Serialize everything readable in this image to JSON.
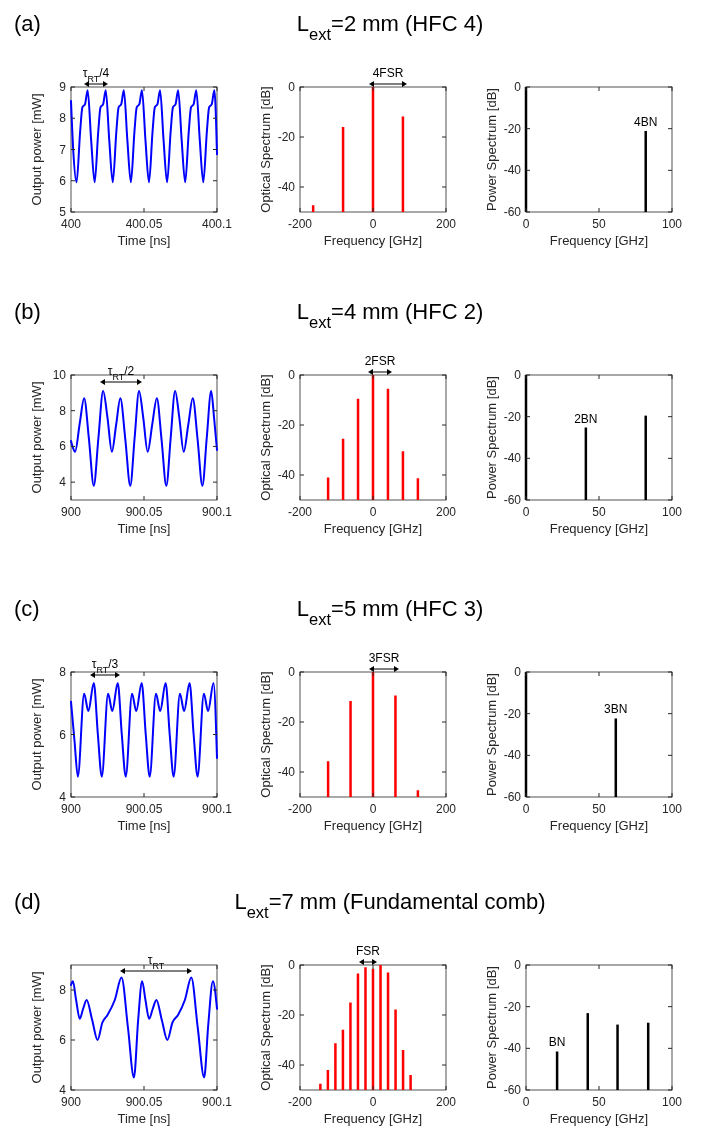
{
  "chart_data": [
    {
      "type": "line",
      "annotations": [
        "(a)",
        "τ$_{RT}$/4"
      ],
      "xlabel": "Time [ns]",
      "ylabel": "Output power [mW]",
      "xlim": [
        400,
        400.1
      ],
      "xticks": [
        400,
        400.05,
        400.1
      ],
      "ylim": [
        5,
        9
      ],
      "yticks": [
        5,
        6,
        7,
        8,
        9
      ],
      "x": [
        400,
        400.0015,
        400.0038,
        400.0063,
        400.0078,
        400.0096,
        400.0114,
        400.0138,
        400.0162,
        400.0187,
        400.0202,
        400.022,
        400.0238,
        400.0262,
        400.0286,
        400.0311,
        400.0326,
        400.0344,
        400.0362,
        400.0386,
        400.041,
        400.0435,
        400.045,
        400.0468,
        400.0486,
        400.051,
        400.0534,
        400.0559,
        400.0574,
        400.0592,
        400.061,
        400.0634,
        400.0658,
        400.0683,
        400.0698,
        400.0716,
        400.0734,
        400.0758,
        400.0782,
        400.0807,
        400.0822,
        400.084,
        400.0858,
        400.0882,
        400.0906,
        400.0931,
        400.0946,
        400.0964,
        400.0982,
        400.1
      ],
      "series": [
        {
          "color": "#0000ff",
          "values": [
            8.55,
            7.0,
            5.95,
            7.6,
            8.35,
            8.45,
            8.9,
            7.3,
            5.95,
            7.6,
            8.35,
            8.45,
            8.9,
            7.3,
            5.95,
            7.6,
            8.35,
            8.45,
            8.9,
            7.3,
            5.95,
            7.6,
            8.35,
            8.45,
            8.9,
            7.3,
            5.95,
            7.6,
            8.35,
            8.45,
            8.9,
            7.3,
            5.95,
            7.6,
            8.35,
            8.45,
            8.9,
            7.3,
            5.95,
            7.6,
            8.35,
            8.45,
            8.9,
            7.3,
            5.95,
            7.6,
            8.35,
            8.45,
            8.9,
            6.85
          ]
        }
      ]
    },
    {
      "type": "bar",
      "title": "L$_{ext}$=2 mm (HFC 4)",
      "annotations": [
        "4FSR"
      ],
      "xlabel": "Frequency [GHz]",
      "ylabel": "Optical Spectrum [dB]",
      "xlim": [
        -200,
        200
      ],
      "xticks": [
        -200,
        0,
        200
      ],
      "ylim": [
        -50,
        0
      ],
      "yticks": [
        -40,
        -20,
        0
      ],
      "color": "#ff0000",
      "x": [
        -164,
        -82,
        0,
        82
      ],
      "base": [
        -50,
        -50,
        -50,
        -50
      ],
      "values": [
        2.7,
        34,
        50,
        38.2
      ]
    },
    {
      "type": "bar",
      "annotations": [
        {
          "text": "4BN",
          "x": 82,
          "y": -21.1
        }
      ],
      "xlabel": "Frequency [GHz]",
      "ylabel": "Power Spectrum [dB]",
      "xlim": [
        0,
        100
      ],
      "xticks": [
        0,
        50,
        100
      ],
      "ylim": [
        -60,
        0
      ],
      "yticks": [
        -60,
        -40,
        -20,
        0
      ],
      "color": "#000000",
      "x": [
        0,
        82
      ],
      "base": [
        -60,
        -60
      ],
      "values": [
        60,
        38.9
      ]
    },
    {
      "type": "line",
      "annotations": [
        "(b)",
        "τ$_{RT}$/2"
      ],
      "xlabel": "Time [ns]",
      "ylabel": "Output power [mW]",
      "xlim": [
        900,
        900.1
      ],
      "xticks": [
        900,
        900.05,
        900.1
      ],
      "ylim": [
        3,
        10
      ],
      "yticks": [
        4,
        6,
        8,
        10
      ],
      "x": [
        900,
        900.0014,
        900.0028,
        900.006,
        900.009,
        900.0123,
        900.0156,
        900.0188,
        900.022,
        900.025,
        900.028,
        900.0309,
        900.0338,
        900.0372,
        900.0406,
        900.0436,
        900.0466,
        900.0495,
        900.0525,
        900.0556,
        900.0588,
        900.062,
        900.0653,
        900.0683,
        900.0713,
        900.0742,
        900.0772,
        900.0803,
        900.0834,
        900.0867,
        900.09,
        900.093,
        900.096,
        900.098,
        900.1
      ],
      "series": [
        {
          "color": "#0000ff",
          "values": [
            6.3,
            5.9,
            5.7,
            7.3,
            8.7,
            6.4,
            3.8,
            6.5,
            9.1,
            7.6,
            5.7,
            7.2,
            8.7,
            6.4,
            3.8,
            6.5,
            9.1,
            7.6,
            5.7,
            7.2,
            8.7,
            6.4,
            3.8,
            6.5,
            9.1,
            7.6,
            5.7,
            7.2,
            8.7,
            6.4,
            3.8,
            6.5,
            9.1,
            7.6,
            5.8
          ]
        }
      ]
    },
    {
      "type": "bar",
      "title": "L$_{ext}$=4 mm (HFC 2)",
      "annotations": [
        "2FSR"
      ],
      "xlabel": "Frequency [GHz]",
      "ylabel": "Optical Spectrum [dB]",
      "xlim": [
        -200,
        200
      ],
      "xticks": [
        -200,
        0,
        200
      ],
      "ylim": [
        -50,
        0
      ],
      "yticks": [
        -40,
        -20,
        0
      ],
      "color": "#ff0000",
      "x": [
        -123,
        -82,
        -41,
        0,
        41,
        82,
        123
      ],
      "base": [
        -50,
        -50,
        -50,
        -50,
        -50,
        -50,
        -50
      ],
      "values": [
        9,
        24.5,
        40.5,
        50,
        44.5,
        19.5,
        8.7
      ]
    },
    {
      "type": "bar",
      "annotations": [
        {
          "text": "2BN",
          "x": 41,
          "y": -25.2
        }
      ],
      "xlabel": "Frequency [GHz]",
      "ylabel": "Power Spectrum [dB]",
      "xlim": [
        0,
        100
      ],
      "xticks": [
        0,
        50,
        100
      ],
      "ylim": [
        -60,
        0
      ],
      "yticks": [
        -60,
        -40,
        -20,
        0
      ],
      "color": "#000000",
      "x": [
        0,
        41,
        82
      ],
      "base": [
        -60,
        -60,
        -60
      ],
      "values": [
        60,
        34.8,
        40.5
      ]
    },
    {
      "type": "line",
      "annotations": [
        "(c)",
        "τ$_{RT}$/3"
      ],
      "xlabel": "Time [ns]",
      "ylabel": "Output power [mW]",
      "xlim": [
        900,
        900.1
      ],
      "xticks": [
        900,
        900.05,
        900.1
      ],
      "ylim": [
        4,
        8
      ],
      "yticks": [
        4,
        6,
        8
      ],
      "x": [
        900,
        900.0024,
        900.0047,
        900.009,
        900.0119,
        900.0156,
        900.0184,
        900.0211,
        900.0254,
        900.0283,
        900.032,
        900.0348,
        900.0375,
        900.0418,
        900.0447,
        900.0484,
        900.0512,
        900.0539,
        900.0582,
        900.0611,
        900.0648,
        900.0676,
        900.0703,
        900.0746,
        900.0775,
        900.0812,
        900.084,
        900.0867,
        900.091,
        900.0939,
        900.0976,
        900.1
      ],
      "series": [
        {
          "color": "#0000ff",
          "values": [
            7.05,
            5.8,
            4.65,
            7.3,
            6.75,
            7.65,
            6.0,
            4.65,
            7.3,
            6.75,
            7.65,
            6.0,
            4.65,
            7.3,
            6.75,
            7.65,
            6.0,
            4.65,
            7.3,
            6.75,
            7.65,
            6.0,
            4.65,
            7.3,
            6.75,
            7.65,
            6.0,
            4.65,
            7.3,
            6.75,
            7.65,
            5.25
          ]
        }
      ]
    },
    {
      "type": "bar",
      "title": "L$_{ext}$=5 mm (HFC 3)",
      "annotations": [
        "3FSR"
      ],
      "xlabel": "Frequency [GHz]",
      "ylabel": "Optical Spectrum [dB]",
      "xlim": [
        -200,
        200
      ],
      "xticks": [
        -200,
        0,
        200
      ],
      "ylim": [
        -50,
        0
      ],
      "yticks": [
        -40,
        -20,
        0
      ],
      "color": "#ff0000",
      "x": [
        -123,
        -61.5,
        0,
        61.5,
        123
      ],
      "base": [
        -50,
        -50,
        -50,
        -50,
        -50
      ],
      "values": [
        14.3,
        38.4,
        50,
        40.6,
        2.7
      ]
    },
    {
      "type": "bar",
      "annotations": [
        {
          "text": "3BN",
          "x": 61.5,
          "y": -22.3
        }
      ],
      "xlabel": "Frequency [GHz]",
      "ylabel": "Power Spectrum [dB]",
      "xlim": [
        0,
        100
      ],
      "xticks": [
        0,
        50,
        100
      ],
      "ylim": [
        -60,
        0
      ],
      "yticks": [
        -60,
        -40,
        -20,
        0
      ],
      "color": "#000000",
      "x": [
        0,
        61.5
      ],
      "base": [
        -60,
        -60
      ],
      "values": [
        60,
        37.7
      ]
    },
    {
      "type": "line",
      "annotations": [
        "(d)",
        "τ$_{RT}$"
      ],
      "xlabel": "Time [ns]",
      "ylabel": "Output power [mW]",
      "xlim": [
        900,
        900.1
      ],
      "xticks": [
        900,
        900.05,
        900.1
      ],
      "ylim": [
        4,
        9
      ],
      "yticks": [
        4,
        6,
        8
      ],
      "x": [
        900,
        900.0013,
        900.0035,
        900.006,
        900.0083,
        900.0107,
        900.0145,
        900.0182,
        900.0215,
        900.025,
        900.03,
        900.0346,
        900.039,
        900.0431,
        900.046,
        900.0487,
        900.051,
        900.0535,
        900.056,
        900.0585,
        900.0622,
        900.066,
        900.0695,
        900.0733,
        900.078,
        900.0824,
        900.0868,
        900.0912,
        900.094,
        900.0972,
        900.1
      ],
      "series": [
        {
          "color": "#0000ff",
          "values": [
            8.2,
            8.35,
            7.6,
            6.85,
            7.25,
            7.6,
            6.8,
            6.0,
            6.7,
            7.0,
            7.6,
            8.5,
            6.5,
            4.5,
            6.8,
            8.35,
            7.6,
            6.85,
            7.25,
            7.6,
            6.8,
            6.0,
            6.7,
            7.0,
            7.6,
            8.5,
            6.5,
            4.5,
            6.6,
            8.35,
            7.25
          ]
        }
      ]
    },
    {
      "type": "bar",
      "title": "L$_{ext}$=7 mm (Fundamental comb)",
      "annotations": [
        "FSR"
      ],
      "xlabel": "Frequency [GHz]",
      "ylabel": "Optical Spectrum [dB]",
      "xlim": [
        -200,
        200
      ],
      "xticks": [
        -200,
        0,
        200
      ],
      "ylim": [
        -50,
        0
      ],
      "yticks": [
        -40,
        -20,
        0
      ],
      "color": "#ff0000",
      "x": [
        -144.2,
        -123.6,
        -103,
        -82.4,
        -61.8,
        -41.2,
        -20.6,
        0,
        20.6,
        41.2,
        61.8,
        82.4,
        103
      ],
      "base": [
        -50,
        -50,
        -50,
        -50,
        -50,
        -50,
        -50,
        -50,
        -50,
        -50,
        -50,
        -50,
        -50
      ],
      "values": [
        2.5,
        8,
        18.7,
        24.1,
        35,
        46.6,
        49.1,
        48.5,
        50,
        47,
        32.2,
        16,
        6
      ]
    },
    {
      "type": "bar",
      "annotations": [
        {
          "text": "BN",
          "x": 21.3,
          "y": -41.5
        }
      ],
      "xlabel": "Frequency [GHz]",
      "ylabel": "Power Spectrum [dB]",
      "xlim": [
        0,
        100
      ],
      "xticks": [
        0,
        50,
        100
      ],
      "ylim": [
        -60,
        0
      ],
      "yticks": [
        -60,
        -40,
        -20,
        0
      ],
      "color": "#000000",
      "x": [
        21.3,
        42.3,
        62.7,
        83.7
      ],
      "base": [
        -60,
        -60,
        -60,
        -60
      ],
      "values": [
        18.5,
        36.9,
        31.4,
        32.3
      ]
    }
  ]
}
